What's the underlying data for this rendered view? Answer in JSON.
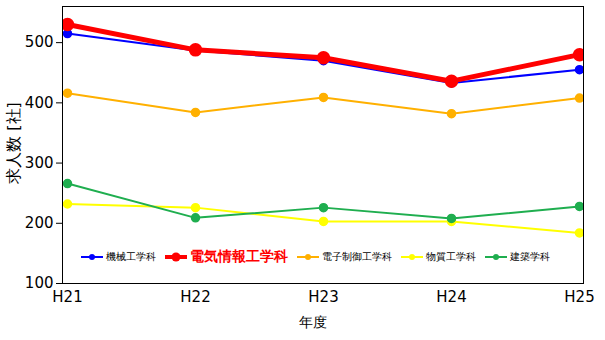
{
  "chart_data": {
    "type": "line",
    "x_label": "年度",
    "y_label": "求人数 [社]",
    "categories": [
      "H21",
      "H22",
      "H23",
      "H24",
      "H25"
    ],
    "ylim": [
      100,
      560
    ],
    "yticks": [
      100,
      200,
      300,
      400,
      500
    ],
    "grid": false,
    "legend": "bottom",
    "series": [
      {
        "name": "機械工学科",
        "color": "#0000ff",
        "marker": "circle",
        "line_style": "solid",
        "values": [
          515,
          487,
          470,
          433,
          455
        ]
      },
      {
        "name": "電気情報工学科",
        "color": "#ff0000",
        "marker": "circle",
        "line_style": "thick",
        "values": [
          530,
          488,
          475,
          436,
          480
        ]
      },
      {
        "name": "電子制御工学科",
        "color": "#ffb000",
        "marker": "circle",
        "line_style": "solid",
        "values": [
          416,
          384,
          409,
          382,
          408
        ]
      },
      {
        "name": "物質工学科",
        "color": "#ffff00",
        "marker": "circle",
        "line_style": "solid",
        "values": [
          232,
          226,
          203,
          203,
          184
        ]
      },
      {
        "name": "建築学科",
        "color": "#1fae4f",
        "marker": "circle",
        "line_style": "solid",
        "values": [
          266,
          209,
          226,
          208,
          228
        ]
      }
    ]
  }
}
